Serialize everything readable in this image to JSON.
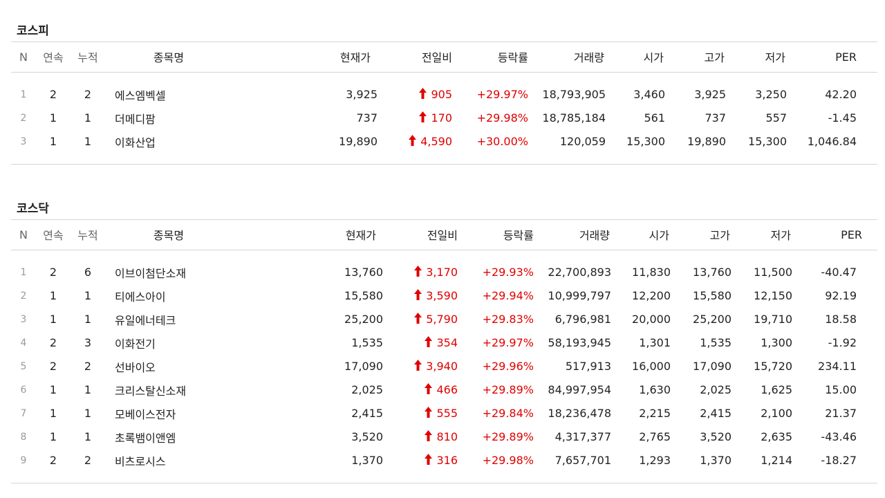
{
  "headers": {
    "n": "N",
    "streak": "연속",
    "cum": "누적",
    "name": "종목명",
    "price": "현재가",
    "change": "전일비",
    "rate": "등락률",
    "volume": "거래량",
    "open": "시가",
    "high": "고가",
    "low": "저가",
    "per": "PER"
  },
  "colors": {
    "up": "#e00000",
    "arrow": "up-arrow-icon"
  },
  "kospi": {
    "title": "코스피",
    "rows": [
      {
        "n": "1",
        "streak": "2",
        "cum": "2",
        "name": "에스엠벡셀",
        "price": "3,925",
        "change": "905",
        "rate": "+29.97%",
        "volume": "18,793,905",
        "open": "3,460",
        "high": "3,925",
        "low": "3,250",
        "per": "42.20"
      },
      {
        "n": "2",
        "streak": "1",
        "cum": "1",
        "name": "더메디팜",
        "price": "737",
        "change": "170",
        "rate": "+29.98%",
        "volume": "18,785,184",
        "open": "561",
        "high": "737",
        "low": "557",
        "per": "-1.45"
      },
      {
        "n": "3",
        "streak": "1",
        "cum": "1",
        "name": "이화산업",
        "price": "19,890",
        "change": "4,590",
        "rate": "+30.00%",
        "volume": "120,059",
        "open": "15,300",
        "high": "19,890",
        "low": "15,300",
        "per": "1,046.84"
      }
    ]
  },
  "kosdaq": {
    "title": "코스닥",
    "rows": [
      {
        "n": "1",
        "streak": "2",
        "cum": "6",
        "name": "이브이첨단소재",
        "price": "13,760",
        "change": "3,170",
        "rate": "+29.93%",
        "volume": "22,700,893",
        "open": "11,830",
        "high": "13,760",
        "low": "11,500",
        "per": "-40.47"
      },
      {
        "n": "2",
        "streak": "1",
        "cum": "1",
        "name": "티에스아이",
        "price": "15,580",
        "change": "3,590",
        "rate": "+29.94%",
        "volume": "10,999,797",
        "open": "12,200",
        "high": "15,580",
        "low": "12,150",
        "per": "92.19"
      },
      {
        "n": "3",
        "streak": "1",
        "cum": "1",
        "name": "유일에너테크",
        "price": "25,200",
        "change": "5,790",
        "rate": "+29.83%",
        "volume": "6,796,981",
        "open": "20,000",
        "high": "25,200",
        "low": "19,710",
        "per": "18.58"
      },
      {
        "n": "4",
        "streak": "2",
        "cum": "3",
        "name": "이화전기",
        "price": "1,535",
        "change": "354",
        "rate": "+29.97%",
        "volume": "58,193,945",
        "open": "1,301",
        "high": "1,535",
        "low": "1,300",
        "per": "-1.92"
      },
      {
        "n": "5",
        "streak": "2",
        "cum": "2",
        "name": "선바이오",
        "price": "17,090",
        "change": "3,940",
        "rate": "+29.96%",
        "volume": "517,913",
        "open": "16,000",
        "high": "17,090",
        "low": "15,720",
        "per": "234.11"
      },
      {
        "n": "6",
        "streak": "1",
        "cum": "1",
        "name": "크리스탈신소재",
        "price": "2,025",
        "change": "466",
        "rate": "+29.89%",
        "volume": "84,997,954",
        "open": "1,630",
        "high": "2,025",
        "low": "1,625",
        "per": "15.00"
      },
      {
        "n": "7",
        "streak": "1",
        "cum": "1",
        "name": "모베이스전자",
        "price": "2,415",
        "change": "555",
        "rate": "+29.84%",
        "volume": "18,236,478",
        "open": "2,215",
        "high": "2,415",
        "low": "2,100",
        "per": "21.37"
      },
      {
        "n": "8",
        "streak": "1",
        "cum": "1",
        "name": "초록뱀이앤엠",
        "price": "3,520",
        "change": "810",
        "rate": "+29.89%",
        "volume": "4,317,377",
        "open": "2,765",
        "high": "3,520",
        "low": "2,635",
        "per": "-43.46"
      },
      {
        "n": "9",
        "streak": "2",
        "cum": "2",
        "name": "비츠로시스",
        "price": "1,370",
        "change": "316",
        "rate": "+29.98%",
        "volume": "7,657,701",
        "open": "1,293",
        "high": "1,370",
        "low": "1,214",
        "per": "-18.27"
      }
    ]
  }
}
